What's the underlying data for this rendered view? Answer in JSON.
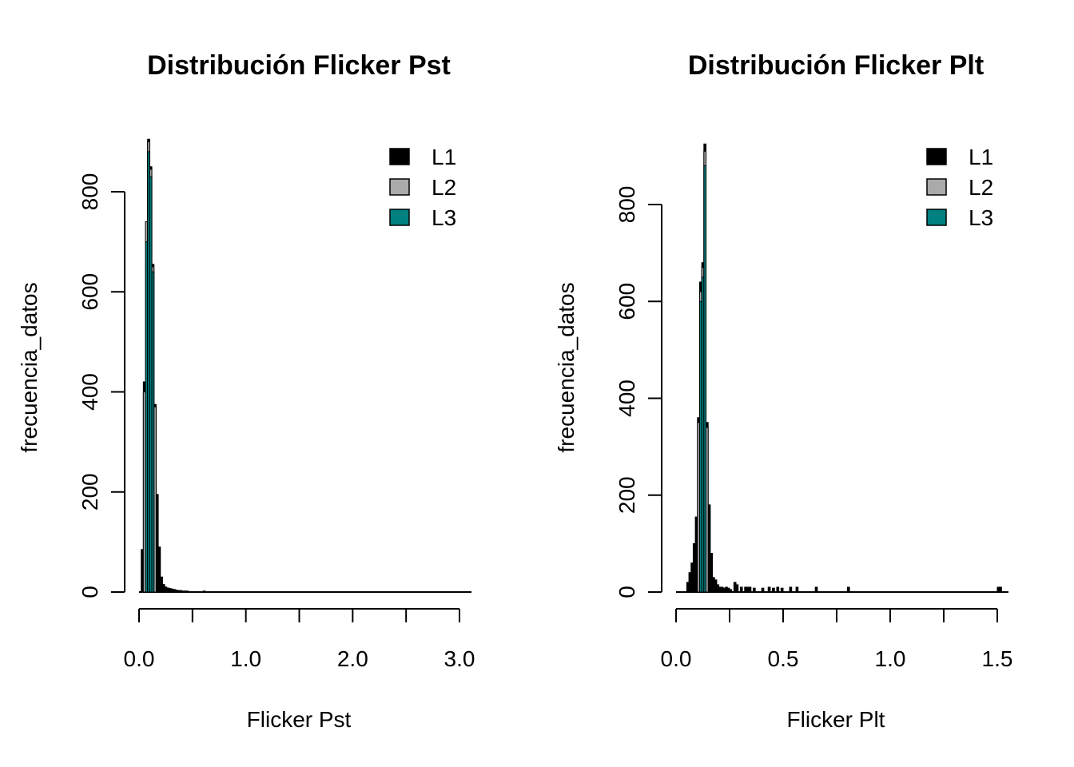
{
  "chart_data": [
    {
      "type": "bar",
      "title": "Distribución Flicker Pst",
      "xlabel": "Flicker Pst",
      "ylabel": "frecuencia_datos",
      "xlim": [
        0,
        3.1
      ],
      "ylim": [
        0,
        800
      ],
      "x_ticks": [
        0.0,
        0.5,
        1.0,
        1.5,
        2.0,
        2.5,
        3.0
      ],
      "x_tick_labels": [
        "0.0",
        "1.0",
        "2.0",
        "3.0"
      ],
      "y_ticks": [
        0,
        200,
        400,
        600,
        800
      ],
      "y_tick_labels": [
        "0",
        "200",
        "400",
        "600",
        "800"
      ],
      "legend": {
        "position": "top-right",
        "entries": [
          {
            "label": "L1",
            "color": "#000000"
          },
          {
            "label": "L2",
            "color": "#aaaaaa"
          },
          {
            "label": "L3",
            "color": "#008080"
          }
        ]
      },
      "series": [
        {
          "name": "L1",
          "color": "#000000",
          "bin_width": 0.02,
          "x": [
            0.03,
            0.05,
            0.07,
            0.09,
            0.11,
            0.13,
            0.15,
            0.17,
            0.19,
            0.21,
            0.23,
            0.25,
            0.27,
            0.29,
            0.31,
            0.33,
            0.35,
            0.37,
            0.39,
            0.41,
            0.43,
            0.45,
            0.47,
            0.49,
            0.55,
            0.61,
            0.71,
            0.77
          ],
          "y": [
            85,
            420,
            740,
            905,
            850,
            655,
            375,
            195,
            90,
            30,
            15,
            10,
            8,
            7,
            6,
            5,
            4,
            3,
            3,
            2,
            2,
            2,
            1,
            1,
            1,
            2,
            1,
            1
          ]
        },
        {
          "name": "L2",
          "color": "#aaaaaa",
          "bin_width": 0.02,
          "x": [
            0.05,
            0.07,
            0.09,
            0.11,
            0.13,
            0.15
          ],
          "y": [
            400,
            740,
            900,
            845,
            650,
            370
          ]
        },
        {
          "name": "L3",
          "color": "#008080",
          "bin_width": 0.02,
          "x": [
            0.07,
            0.09,
            0.11,
            0.13
          ],
          "y": [
            700,
            880,
            830,
            640
          ]
        }
      ]
    },
    {
      "type": "bar",
      "title": "Distribución Flicker Plt",
      "xlabel": "Flicker Plt",
      "ylabel": "frecuencia_datos",
      "xlim": [
        0,
        1.55
      ],
      "ylim": [
        0,
        800
      ],
      "x_ticks": [
        0.0,
        0.25,
        0.5,
        0.75,
        1.0,
        1.25,
        1.5
      ],
      "x_tick_labels": [
        "0.0",
        "0.5",
        "1.0",
        "1.5"
      ],
      "y_ticks": [
        0,
        200,
        400,
        600,
        800
      ],
      "y_tick_labels": [
        "0",
        "200",
        "400",
        "600",
        "800"
      ],
      "legend": {
        "position": "top-right",
        "entries": [
          {
            "label": "L1",
            "color": "#000000"
          },
          {
            "label": "L2",
            "color": "#aaaaaa"
          },
          {
            "label": "L3",
            "color": "#008080"
          }
        ]
      },
      "series": [
        {
          "name": "L1",
          "color": "#000000",
          "bin_width": 0.01,
          "x": [
            0.055,
            0.065,
            0.075,
            0.085,
            0.095,
            0.105,
            0.115,
            0.125,
            0.135,
            0.145,
            0.155,
            0.165,
            0.175,
            0.185,
            0.195,
            0.205,
            0.215,
            0.225,
            0.235,
            0.245,
            0.255,
            0.275,
            0.285,
            0.305,
            0.325,
            0.335,
            0.345,
            0.365,
            0.405,
            0.435,
            0.455,
            0.475,
            0.495,
            0.535,
            0.565,
            0.655,
            0.805,
            1.505,
            1.515
          ],
          "y": [
            20,
            40,
            60,
            100,
            155,
            360,
            640,
            680,
            925,
            350,
            180,
            80,
            30,
            25,
            15,
            10,
            10,
            8,
            10,
            8,
            5,
            20,
            15,
            10,
            10,
            10,
            10,
            8,
            8,
            10,
            8,
            10,
            8,
            10,
            10,
            10,
            10,
            10,
            10
          ]
        },
        {
          "name": "L2",
          "color": "#aaaaaa",
          "bin_width": 0.01,
          "x": [
            0.105,
            0.115,
            0.125,
            0.135,
            0.145
          ],
          "y": [
            350,
            620,
            670,
            910,
            340
          ]
        },
        {
          "name": "L3",
          "color": "#008080",
          "bin_width": 0.01,
          "x": [
            0.115,
            0.125,
            0.135
          ],
          "y": [
            600,
            650,
            880
          ]
        }
      ]
    }
  ]
}
